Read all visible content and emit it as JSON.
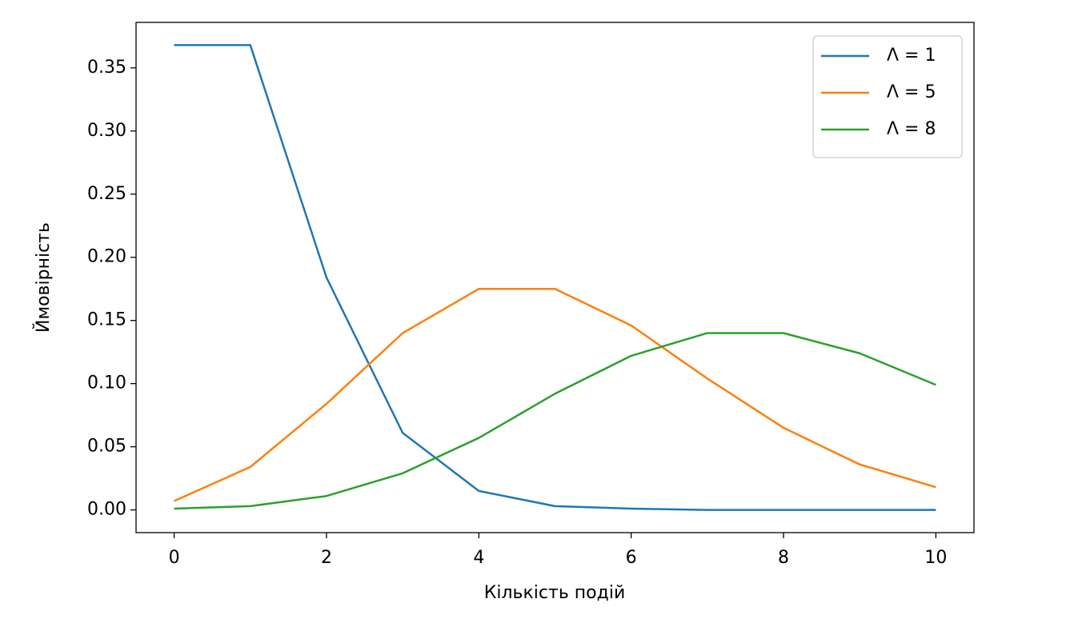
{
  "chart_data": {
    "type": "line",
    "xlabel": "Кількість подій",
    "ylabel": "Ймовірність",
    "x": [
      0,
      1,
      2,
      3,
      4,
      5,
      6,
      7,
      8,
      9,
      10
    ],
    "series": [
      {
        "name": "Λ = 1",
        "color": "#1f77b4",
        "values": [
          0.368,
          0.368,
          0.184,
          0.061,
          0.015,
          0.003,
          0.001,
          0.0,
          0.0,
          0.0,
          0.0
        ]
      },
      {
        "name": "Λ = 5",
        "color": "#ff7f0e",
        "values": [
          0.007,
          0.034,
          0.084,
          0.14,
          0.175,
          0.175,
          0.146,
          0.104,
          0.065,
          0.036,
          0.018
        ]
      },
      {
        "name": "Λ = 8",
        "color": "#2ca02c",
        "values": [
          0.001,
          0.003,
          0.011,
          0.029,
          0.057,
          0.092,
          0.122,
          0.14,
          0.14,
          0.124,
          0.099
        ]
      }
    ],
    "xlim": [
      -0.5,
      10.5
    ],
    "ylim": [
      -0.018,
      0.386
    ],
    "xticks": [
      0,
      2,
      4,
      6,
      8,
      10
    ],
    "yticks": [
      {
        "value": 0,
        "label": "0.00"
      },
      {
        "value": 0.05,
        "label": "0.05"
      },
      {
        "value": 0.1,
        "label": "0.10"
      },
      {
        "value": 0.15,
        "label": "0.15"
      },
      {
        "value": 0.2,
        "label": "0.20"
      },
      {
        "value": 0.25,
        "label": "0.25"
      },
      {
        "value": 0.3,
        "label": "0.30"
      },
      {
        "value": 0.35,
        "label": "0.35"
      }
    ],
    "legend": "upper right",
    "grid": false
  }
}
